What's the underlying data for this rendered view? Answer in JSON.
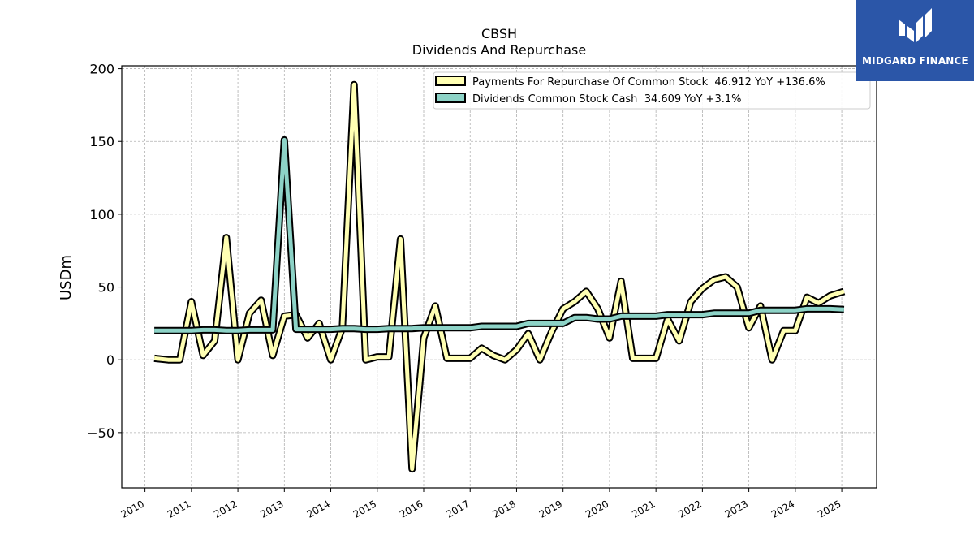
{
  "brand": {
    "name": "MIDGARD FINANCE",
    "icon": "midgard-logo-icon",
    "color": "#2b56a8"
  },
  "chart_data": {
    "type": "line",
    "title": "CBSH",
    "subtitle": "Dividends And Repurchase",
    "xlabel": "",
    "ylabel": "USDm",
    "xlim": [
      2009.5,
      2025.75
    ],
    "ylim": [
      -88,
      202
    ],
    "yticks": [
      -50,
      0,
      50,
      100,
      150,
      200
    ],
    "ytick_labels": [
      "−50",
      "0",
      "50",
      "100",
      "150",
      "200"
    ],
    "xticks": [
      2010,
      2011,
      2012,
      2013,
      2014,
      2015,
      2016,
      2017,
      2018,
      2019,
      2020,
      2021,
      2022,
      2023,
      2024,
      2025
    ],
    "grid": true,
    "legend_position": "top-right",
    "series": [
      {
        "name": "Payments For Repurchase Of Common Stock  46.912 YoY +136.6%",
        "color": "#ffffb3",
        "x": [
          2010.2,
          2010.5,
          2010.75,
          2011.0,
          2011.25,
          2011.5,
          2011.75,
          2012.0,
          2012.25,
          2012.5,
          2012.75,
          2013.0,
          2013.25,
          2013.5,
          2013.75,
          2014.0,
          2014.25,
          2014.5,
          2014.75,
          2015.0,
          2015.25,
          2015.5,
          2015.75,
          2016.0,
          2016.25,
          2016.5,
          2016.75,
          2017.0,
          2017.25,
          2017.5,
          2017.75,
          2018.0,
          2018.25,
          2018.5,
          2018.75,
          2019.0,
          2019.25,
          2019.5,
          2019.75,
          2020.0,
          2020.25,
          2020.5,
          2020.75,
          2021.0,
          2021.25,
          2021.5,
          2021.75,
          2022.0,
          2022.25,
          2022.5,
          2022.75,
          2023.0,
          2023.25,
          2023.5,
          2023.75,
          2024.0,
          2024.25,
          2024.5,
          2024.75,
          2025.05
        ],
        "y": [
          1,
          0,
          0,
          40,
          3,
          13,
          84,
          0,
          32,
          41,
          3,
          30,
          31,
          15,
          25,
          0,
          22,
          189,
          0,
          2,
          2,
          83,
          -75,
          15,
          37,
          1,
          1,
          1,
          8,
          3,
          0,
          7,
          18,
          0,
          19,
          35,
          40,
          47,
          35,
          15,
          54,
          1,
          1,
          1,
          28,
          13,
          40,
          49,
          55,
          57,
          50,
          22,
          37,
          0,
          20,
          20,
          43,
          39,
          44,
          47
        ]
      },
      {
        "name": "Dividends Common Stock Cash  34.609 YoY +3.1%",
        "color": "#8dd3c7",
        "x": [
          2010.2,
          2010.5,
          2010.75,
          2011.0,
          2011.25,
          2011.5,
          2011.75,
          2012.0,
          2012.25,
          2012.5,
          2012.75,
          2013.0,
          2013.25,
          2013.5,
          2013.75,
          2014.0,
          2014.25,
          2014.5,
          2014.75,
          2015.0,
          2015.25,
          2015.5,
          2015.75,
          2016.0,
          2016.25,
          2016.5,
          2016.75,
          2017.0,
          2017.25,
          2017.5,
          2017.75,
          2018.0,
          2018.25,
          2018.5,
          2018.75,
          2019.0,
          2019.25,
          2019.5,
          2019.75,
          2020.0,
          2020.25,
          2020.5,
          2020.75,
          2021.0,
          2021.25,
          2021.5,
          2021.75,
          2022.0,
          2022.25,
          2022.5,
          2022.75,
          2023.0,
          2023.25,
          2023.5,
          2023.75,
          2024.0,
          2024.25,
          2024.5,
          2024.75,
          2025.05
        ],
        "y": [
          20,
          20,
          20,
          20,
          20.5,
          20.5,
          20,
          20,
          20.5,
          20.5,
          20.5,
          151,
          21,
          21,
          21,
          21,
          21.5,
          21.5,
          21,
          21,
          21.5,
          21.5,
          21.5,
          22,
          22,
          22,
          22,
          22,
          23,
          23,
          23,
          23,
          25,
          25,
          25,
          25,
          29,
          29,
          28,
          28,
          30,
          30,
          30,
          30,
          31,
          31,
          31,
          31,
          32,
          32,
          32,
          32,
          34,
          34,
          34,
          34,
          35,
          35,
          35,
          34.6
        ]
      }
    ]
  }
}
